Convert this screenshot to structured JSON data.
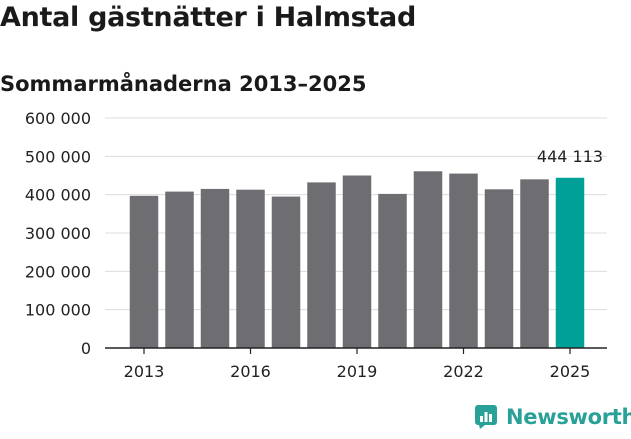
{
  "title": "Antal gästnätter i Halmstad",
  "subtitle": "Sommarmånaderna 2013–2025",
  "logo_text": "Newsworthy",
  "colors": {
    "bar": "#6e6d72",
    "highlight": "#00a096",
    "grid": "#dcdcdc",
    "axis": "#222222",
    "brand": "#2aa198"
  },
  "chart_data": {
    "type": "bar",
    "categories": [
      "2013",
      "2014",
      "2015",
      "2016",
      "2017",
      "2018",
      "2019",
      "2020",
      "2021",
      "2022",
      "2023",
      "2024",
      "2025"
    ],
    "x_tick_labels": [
      "2013",
      "2016",
      "2019",
      "2022",
      "2025"
    ],
    "values": [
      397000,
      408000,
      415000,
      413000,
      395000,
      432000,
      450000,
      402000,
      461000,
      455000,
      414000,
      440000,
      444113
    ],
    "highlight_index": 12,
    "data_labels": [
      {
        "index": 12,
        "text": "444 113"
      }
    ],
    "ylim": [
      0,
      600000
    ],
    "y_ticks": [
      0,
      100000,
      200000,
      300000,
      400000,
      500000,
      600000
    ],
    "y_tick_labels": [
      "0",
      "100 000",
      "200 000",
      "300 000",
      "400 000",
      "500 000",
      "600 000"
    ],
    "grid": true,
    "xlabel": "",
    "ylabel": ""
  }
}
